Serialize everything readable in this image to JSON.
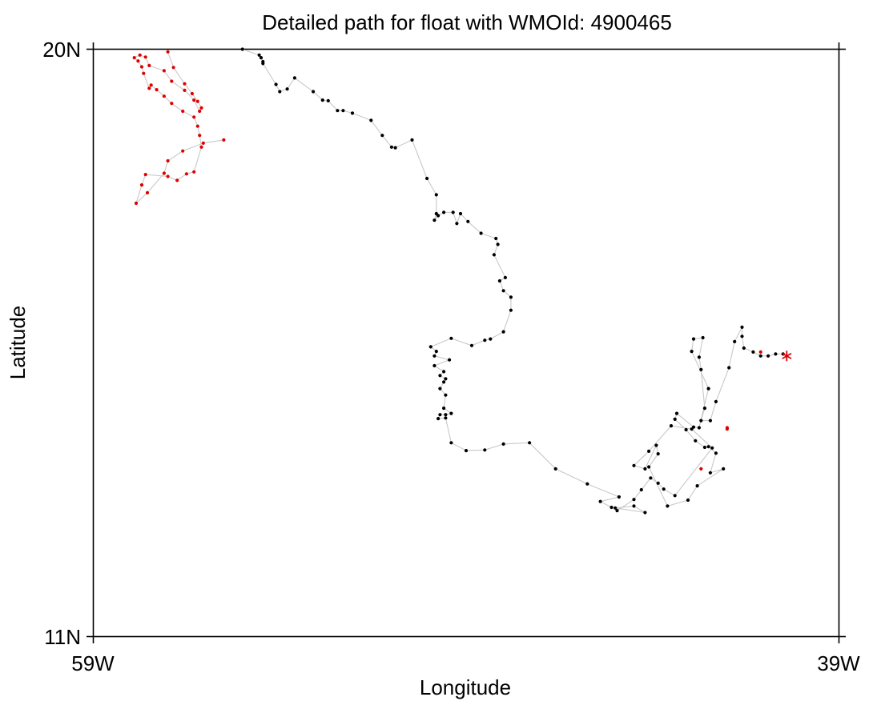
{
  "chart_data": {
    "type": "scatter",
    "title": "Detailed path for float with WMOId: 4900465",
    "xlabel": "Longitude",
    "ylabel": "Latitude",
    "xlim": [
      -59,
      -39
    ],
    "ylim": [
      11,
      20
    ],
    "x_ticks": [
      {
        "value": -59,
        "label": "59W"
      },
      {
        "value": -39,
        "label": "39W"
      }
    ],
    "y_ticks": [
      {
        "value": 20,
        "label": "20N"
      },
      {
        "value": 11,
        "label": "11N"
      }
    ],
    "grid": false,
    "legend": "none",
    "colors": {
      "path_line": "#c8c8c8",
      "black_points": "#000000",
      "red_points": "#e00000",
      "end_marker": "#e00000"
    },
    "end_marker": {
      "symbol": "asterisk",
      "lon": -40.4,
      "lat": 15.3
    },
    "red_segment_start": [
      [
        -41.1,
        15.36
      ],
      [
        -42.0,
        14.18
      ],
      [
        -42.7,
        13.57
      ],
      [
        -42.0,
        14.2
      ]
    ],
    "series": [
      {
        "marker": "black",
        "points": [
          [
            -40.5,
            15.33
          ],
          [
            -40.7,
            15.33
          ],
          [
            -40.9,
            15.3
          ],
          [
            -41.1,
            15.3
          ],
          [
            -41.3,
            15.36
          ],
          [
            -41.55,
            15.42
          ],
          [
            -41.6,
            15.6
          ],
          [
            -41.6,
            15.74
          ],
          [
            -41.8,
            15.52
          ],
          [
            -41.95,
            15.12
          ],
          [
            -42.3,
            14.6
          ],
          [
            -42.45,
            14.31
          ],
          [
            -42.7,
            14.31
          ],
          [
            -42.6,
            14.5
          ],
          [
            -42.7,
            15.09
          ],
          [
            -42.75,
            15.28
          ],
          [
            -42.65,
            15.58
          ],
          [
            -42.9,
            15.56
          ],
          [
            -42.95,
            15.37
          ],
          [
            -42.5,
            14.8
          ],
          [
            -42.75,
            14.2
          ],
          [
            -42.9,
            14.21
          ],
          [
            -43.35,
            14.42
          ],
          [
            -43.4,
            14.33
          ],
          [
            -43.1,
            14.17
          ],
          [
            -42.85,
            14.0
          ],
          [
            -42.6,
            13.9
          ],
          [
            -42.5,
            13.91
          ],
          [
            -42.3,
            13.81
          ],
          [
            -42.45,
            13.51
          ],
          [
            -42.1,
            13.57
          ],
          [
            -42.8,
            13.31
          ],
          [
            -43.05,
            13.09
          ],
          [
            -43.6,
            13.0
          ],
          [
            -44.1,
            13.6
          ],
          [
            -43.85,
            13.8
          ],
          [
            -43.9,
            13.93
          ],
          [
            -44.2,
            13.57
          ],
          [
            -44.5,
            13.62
          ],
          [
            -44.1,
            13.84
          ],
          [
            -43.5,
            14.23
          ],
          [
            -42.95,
            14.18
          ],
          [
            -42.4,
            13.89
          ],
          [
            -43.4,
            13.16
          ],
          [
            -43.7,
            13.26
          ],
          [
            -43.85,
            13.35
          ],
          [
            -44.05,
            13.43
          ],
          [
            -44.3,
            13.25
          ],
          [
            -44.5,
            13.1
          ],
          [
            -44.95,
            12.93
          ],
          [
            -45.0,
            12.97
          ],
          [
            -44.5,
            13.0
          ],
          [
            -44.2,
            12.9
          ],
          [
            -45.1,
            12.98
          ],
          [
            -45.4,
            13.07
          ],
          [
            -44.9,
            13.14
          ],
          [
            -45.75,
            13.34
          ],
          [
            -46.6,
            13.57
          ],
          [
            -47.3,
            13.97
          ],
          [
            -48.0,
            13.95
          ],
          [
            -48.5,
            13.86
          ],
          [
            -49.0,
            13.85
          ],
          [
            -49.4,
            13.97
          ],
          [
            -49.55,
            14.35
          ],
          [
            -49.75,
            14.34
          ],
          [
            -49.7,
            14.4
          ],
          [
            -49.55,
            14.4
          ],
          [
            -49.4,
            14.42
          ],
          [
            -49.6,
            14.5
          ],
          [
            -49.55,
            14.7
          ],
          [
            -49.7,
            14.8
          ],
          [
            -49.6,
            14.9
          ],
          [
            -49.55,
            14.95
          ],
          [
            -49.7,
            15.0
          ],
          [
            -49.6,
            15.06
          ],
          [
            -49.85,
            15.15
          ],
          [
            -49.45,
            15.24
          ],
          [
            -49.85,
            15.3
          ],
          [
            -49.8,
            15.37
          ],
          [
            -49.95,
            15.44
          ],
          [
            -49.4,
            15.57
          ],
          [
            -48.85,
            15.46
          ],
          [
            -48.5,
            15.54
          ],
          [
            -48.35,
            15.56
          ],
          [
            -48.0,
            15.67
          ],
          [
            -47.8,
            16.0
          ],
          [
            -47.8,
            16.2
          ],
          [
            -48.0,
            16.3
          ],
          [
            -48.1,
            16.45
          ],
          [
            -47.95,
            16.5
          ],
          [
            -48.25,
            16.85
          ],
          [
            -48.15,
            17.01
          ],
          [
            -48.2,
            17.1
          ],
          [
            -48.6,
            17.18
          ],
          [
            -48.95,
            17.36
          ],
          [
            -49.15,
            17.48
          ],
          [
            -49.25,
            17.33
          ],
          [
            -49.35,
            17.5
          ],
          [
            -49.6,
            17.5
          ],
          [
            -49.75,
            17.45
          ],
          [
            -49.85,
            17.38
          ],
          [
            -49.8,
            17.48
          ],
          [
            -49.8,
            17.77
          ],
          [
            -50.05,
            18.02
          ],
          [
            -50.45,
            18.61
          ],
          [
            -50.9,
            18.49
          ],
          [
            -51.0,
            18.5
          ],
          [
            -51.25,
            18.68
          ],
          [
            -51.55,
            18.91
          ],
          [
            -52.05,
            19.02
          ],
          [
            -52.3,
            19.06
          ],
          [
            -52.45,
            19.06
          ],
          [
            -52.7,
            19.21
          ],
          [
            -52.85,
            19.22
          ],
          [
            -53.1,
            19.35
          ],
          [
            -53.6,
            19.56
          ],
          [
            -53.8,
            19.39
          ],
          [
            -54.0,
            19.35
          ],
          [
            -54.1,
            19.46
          ],
          [
            -54.45,
            19.78
          ],
          [
            -54.45,
            19.81
          ],
          [
            -54.5,
            19.87
          ],
          [
            -54.55,
            19.91
          ],
          [
            -55.0,
            20.0
          ]
        ]
      },
      {
        "marker": "red",
        "points": [
          [
            -55.5,
            18.61
          ],
          [
            -56.05,
            18.56
          ],
          [
            -56.6,
            18.44
          ],
          [
            -57.0,
            18.29
          ],
          [
            -57.1,
            18.1
          ],
          [
            -57.55,
            17.8
          ],
          [
            -57.85,
            17.64
          ],
          [
            -57.7,
            17.92
          ],
          [
            -57.6,
            18.08
          ],
          [
            -57.0,
            18.05
          ],
          [
            -56.75,
            17.99
          ],
          [
            -56.5,
            18.09
          ],
          [
            -56.3,
            18.12
          ],
          [
            -56.1,
            18.5
          ],
          [
            -56.15,
            18.68
          ],
          [
            -56.2,
            18.82
          ],
          [
            -56.3,
            18.96
          ],
          [
            -56.6,
            19.05
          ],
          [
            -56.9,
            19.17
          ],
          [
            -57.1,
            19.28
          ],
          [
            -57.3,
            19.38
          ],
          [
            -57.45,
            19.45
          ],
          [
            -57.5,
            19.4
          ],
          [
            -57.65,
            19.63
          ],
          [
            -57.7,
            19.73
          ],
          [
            -57.8,
            19.82
          ],
          [
            -57.9,
            19.87
          ],
          [
            -57.75,
            19.91
          ],
          [
            -57.6,
            19.88
          ],
          [
            -57.5,
            19.75
          ],
          [
            -57.1,
            19.67
          ],
          [
            -56.9,
            19.51
          ],
          [
            -56.55,
            19.37
          ],
          [
            -56.3,
            19.22
          ],
          [
            -56.15,
            19.05
          ],
          [
            -56.1,
            19.1
          ],
          [
            -56.2,
            19.2
          ],
          [
            -56.35,
            19.32
          ],
          [
            -56.55,
            19.47
          ],
          [
            -56.85,
            19.72
          ],
          [
            -57.0,
            19.96
          ]
        ]
      }
    ]
  }
}
